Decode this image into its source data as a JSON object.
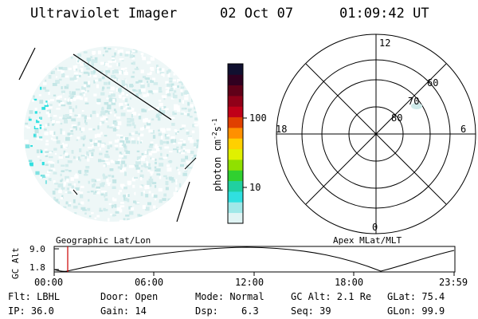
{
  "header": {
    "instrument": "Ultraviolet Imager",
    "date": "02 Oct 07",
    "time": "01:09:42 UT"
  },
  "colorbar": {
    "unit": "photon cm",
    "unit_exp1": "-2",
    "unit_s": "s",
    "unit_exp2": "-1",
    "ticks": [
      "100",
      "10"
    ],
    "colors": [
      "#101030",
      "#300020",
      "#600018",
      "#900018",
      "#c00018",
      "#e04000",
      "#ff9000",
      "#ffd000",
      "#e0f000",
      "#90e000",
      "#30d030",
      "#20d0a0",
      "#30e0e0",
      "#a0e8e8",
      "#e0f4f4"
    ]
  },
  "polar_plot": {
    "mlt_labels": [
      "12",
      "18",
      "6",
      "0"
    ],
    "lat_labels": [
      "60",
      "70",
      "80"
    ]
  },
  "timeline": {
    "left_title": "Geographic Lat/Lon",
    "right_title": "Apex MLat/MLT",
    "axis_label": "GC Alt",
    "y_max": "9.0",
    "y_min": "1.8",
    "x_ticks": [
      "00:00",
      "06:00",
      "12:00",
      "18:00",
      "23:59"
    ],
    "marker_color": "#cc0000"
  },
  "status": {
    "row1": {
      "flt": "Flt: LBHL",
      "door": "Door: Open",
      "mode": "Mode: Normal",
      "gcalt": "GC Alt: 2.1 Re",
      "glat": "GLat: 75.4"
    },
    "row2": {
      "ip": "IP: 36.0",
      "gain": "Gain: 14",
      "dsp_label": "Dsp:",
      "dsp_value": "6.3",
      "seq": "Seq: 39",
      "glon": "GLon: 99.9"
    }
  }
}
